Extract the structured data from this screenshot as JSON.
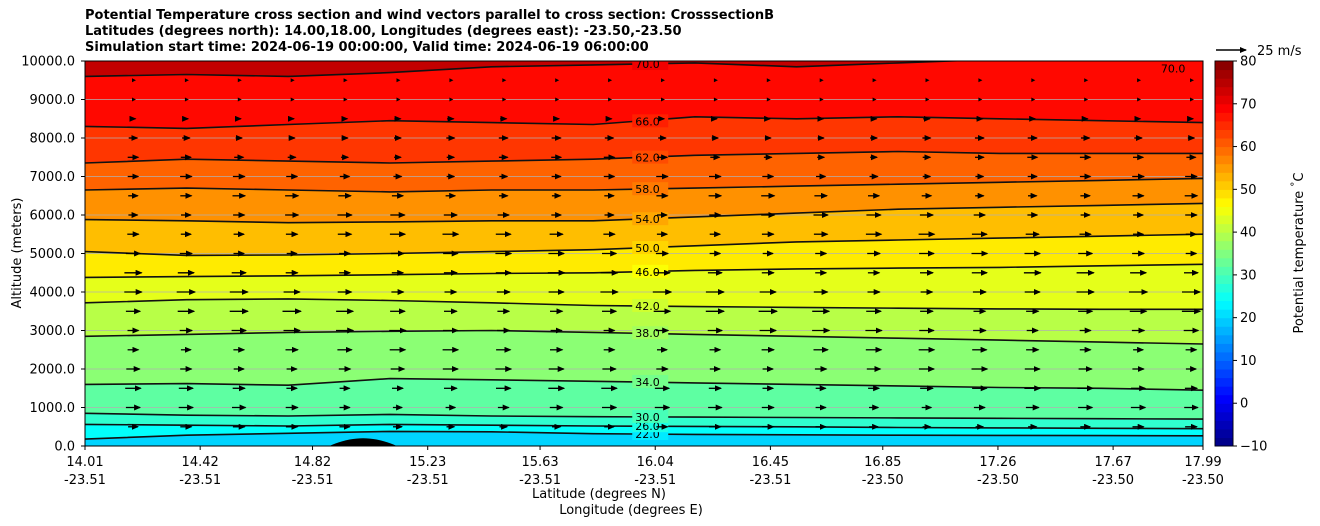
{
  "titles": {
    "line1": "Potential Temperature cross section and wind vectors parallel to cross section: CrosssectionB",
    "line2": "Latitudes (degrees north): 14.00,18.00, Longitudes (degrees east): -23.50,-23.50",
    "line3": "Simulation start time: 2024-06-19 00:00:00, Valid time: 2024-06-19 06:00:00"
  },
  "chart_data": {
    "type": "heatmap",
    "description_kind": "cross-section contour with wind vectors",
    "ylabel": "Altitude (meters)",
    "xlabel_lat": "Latitude (degrees N)",
    "xlabel_lon": "Longitude (degrees E)",
    "ylim": [
      0,
      10000
    ],
    "y_ticks": [
      "0.0",
      "1000.0",
      "2000.0",
      "3000.0",
      "4000.0",
      "5000.0",
      "6000.0",
      "7000.0",
      "8000.0",
      "9000.0",
      "10000.0"
    ],
    "y_tick_values": [
      0,
      1000,
      2000,
      3000,
      4000,
      5000,
      6000,
      7000,
      8000,
      9000,
      10000
    ],
    "x_ticks_lat": [
      "14.01",
      "14.42",
      "14.82",
      "15.23",
      "15.63",
      "16.04",
      "16.45",
      "16.85",
      "17.26",
      "17.67",
      "17.99"
    ],
    "x_ticks_lon": [
      "-23.51",
      "-23.51",
      "-23.51",
      "-23.51",
      "-23.51",
      "-23.51",
      "-23.51",
      "-23.50",
      "-23.50",
      "-23.50",
      "-23.50"
    ],
    "xlim_lat": [
      14.01,
      17.99
    ],
    "grid": "horizontal",
    "colorbar": {
      "label": "Potential temperature $^\\circ$C",
      "ticks": [
        "−10",
        "0",
        "10",
        "20",
        "30",
        "40",
        "50",
        "60",
        "70",
        "80"
      ],
      "tick_values": [
        -10,
        0,
        10,
        20,
        30,
        40,
        50,
        60,
        70,
        80
      ],
      "range": [
        -10,
        80
      ],
      "colormap": "jet"
    },
    "contour_labels": [
      "22.0",
      "26.0",
      "30.0",
      "34.0",
      "38.0",
      "42.0",
      "46.0",
      "50.0",
      "54.0",
      "58.0",
      "62.0",
      "66.0",
      "70.0",
      "70.0"
    ],
    "contours": [
      {
        "level": 22,
        "label": "22.0",
        "alt": [
          180,
          280,
          330,
          380,
          370,
          320,
          300,
          290,
          280,
          275,
          270,
          265
        ]
      },
      {
        "level": 26,
        "label": "26.0",
        "alt": [
          560,
          540,
          520,
          560,
          540,
          520,
          510,
          500,
          480,
          470,
          460,
          450
        ]
      },
      {
        "level": 30,
        "label": "30.0",
        "alt": [
          850,
          800,
          780,
          820,
          780,
          760,
          750,
          740,
          730,
          720,
          710,
          700
        ]
      },
      {
        "level": 34,
        "label": "34.0",
        "alt": [
          1600,
          1620,
          1580,
          1750,
          1720,
          1680,
          1640,
          1600,
          1560,
          1520,
          1500,
          1450
        ]
      },
      {
        "level": 38,
        "label": "38.0",
        "alt": [
          2850,
          2900,
          2950,
          2980,
          3000,
          2950,
          2900,
          2850,
          2800,
          2750,
          2700,
          2650
        ]
      },
      {
        "level": 42,
        "label": "42.0",
        "alt": [
          3720,
          3800,
          3820,
          3780,
          3720,
          3650,
          3620,
          3600,
          3580,
          3560,
          3550,
          3550
        ]
      },
      {
        "level": 46,
        "label": "46.0",
        "alt": [
          4380,
          4400,
          4420,
          4450,
          4480,
          4500,
          4560,
          4600,
          4620,
          4640,
          4680,
          4720
        ]
      },
      {
        "level": 50,
        "label": "50.0",
        "alt": [
          5050,
          4950,
          4960,
          5000,
          5050,
          5100,
          5200,
          5300,
          5350,
          5400,
          5450,
          5500
        ]
      },
      {
        "level": 54,
        "label": "54.0",
        "alt": [
          5880,
          5850,
          5800,
          5820,
          5850,
          5850,
          5950,
          6050,
          6150,
          6200,
          6250,
          6300
        ]
      },
      {
        "level": 58,
        "label": "58.0",
        "alt": [
          6650,
          6700,
          6650,
          6600,
          6650,
          6650,
          6700,
          6750,
          6800,
          6850,
          6900,
          6950
        ]
      },
      {
        "level": 62,
        "label": "62.0",
        "alt": [
          7350,
          7450,
          7400,
          7350,
          7400,
          7450,
          7550,
          7600,
          7650,
          7600,
          7600,
          7600
        ]
      },
      {
        "level": 66,
        "label": "66.0",
        "alt": [
          8300,
          8250,
          8350,
          8450,
          8400,
          8350,
          8550,
          8500,
          8550,
          8500,
          8450,
          8400
        ]
      },
      {
        "level": 70,
        "label": "70.0",
        "alt": [
          9600,
          9650,
          9600,
          9700,
          9850,
          9900,
          9950,
          9850,
          9950,
          10050,
          10150,
          10200
        ]
      }
    ],
    "terrain": {
      "center_lat": 15.0,
      "peak_alt": 200,
      "halfwidth_lat": 0.12
    },
    "wind_reference": {
      "label": "25 m/s",
      "speed": 25
    },
    "wind_rows_alt": [
      500,
      1000,
      1500,
      2000,
      2500,
      3000,
      3500,
      4000,
      4500,
      5000,
      5500,
      6000,
      6500,
      7000,
      7500,
      8000,
      8500,
      9000,
      9500
    ],
    "wind_speed_by_row": [
      9,
      11,
      12,
      12,
      12,
      13,
      14,
      14,
      13,
      12,
      12,
      11,
      10,
      9,
      8,
      7,
      5,
      3,
      2
    ]
  }
}
